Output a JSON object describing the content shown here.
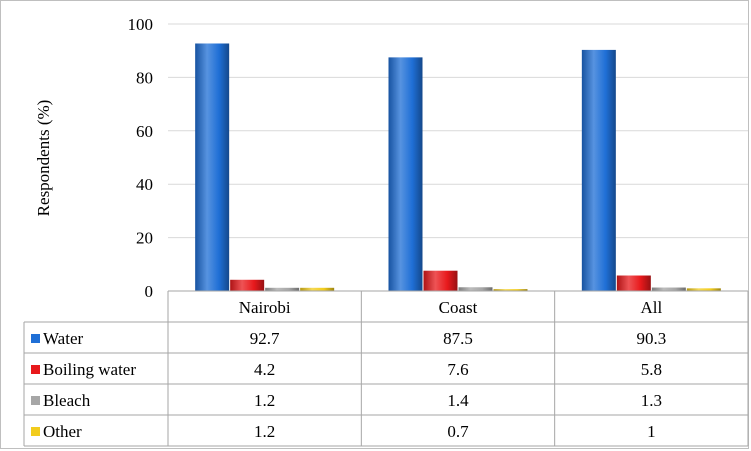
{
  "chart_data": {
    "type": "bar",
    "ylabel": "Respondents (%)",
    "ylim": [
      0,
      100
    ],
    "yticks": [
      0,
      20,
      40,
      60,
      80,
      100
    ],
    "grid": true,
    "legend": "data-table-left",
    "categories": [
      "Nairobi",
      "Coast",
      "All"
    ],
    "series": [
      {
        "name": "Water",
        "values": [
          92.7,
          87.5,
          90.3
        ],
        "display": [
          "92.7",
          "87.5",
          "90.3"
        ],
        "color": "#1f6fd6"
      },
      {
        "name": "Boiling water",
        "values": [
          4.2,
          7.6,
          5.8
        ],
        "display": [
          "4.2",
          "7.6",
          "5.8"
        ],
        "color": "#e8191c"
      },
      {
        "name": "Bleach",
        "values": [
          1.2,
          1.4,
          1.3
        ],
        "display": [
          "1.2",
          "1.4",
          "1.3"
        ],
        "color": "#a6a6a6"
      },
      {
        "name": "Other",
        "values": [
          1.2,
          0.7,
          1
        ],
        "display": [
          "1.2",
          "0.7",
          "1"
        ],
        "color": "#f2cc1d"
      }
    ]
  }
}
